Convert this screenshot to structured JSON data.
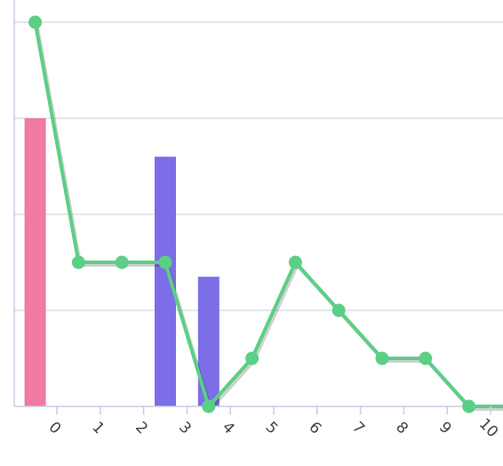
{
  "chart_data": {
    "type": "bar",
    "title": "",
    "xlabel": "",
    "ylabel": "",
    "categories": [
      "0",
      "1",
      "2",
      "3",
      "4",
      "5",
      "6",
      "7",
      "8",
      "9",
      "10"
    ],
    "x_ticks": [
      "0",
      "1",
      "2",
      "3",
      "4",
      "5",
      "6",
      "7",
      "8",
      "9",
      "10"
    ],
    "ylim": [
      0,
      8
    ],
    "grid": true,
    "legend": "none",
    "bar_series": [
      {
        "color": "#ef7aa2",
        "values": [
          6.0,
          0,
          0,
          2.4,
          0,
          0,
          0,
          0,
          0,
          0,
          0
        ]
      },
      {
        "color": "#7b6ee6",
        "values": [
          0,
          0,
          0,
          5.2,
          2.7,
          0,
          0,
          0,
          0,
          0,
          0
        ]
      }
    ],
    "line_series": {
      "color": "#5bcf86",
      "x": [
        -0.5,
        0.5,
        1.5,
        2.5,
        3.5,
        4.5,
        5.5,
        6.5,
        7.5,
        8.5,
        9.5,
        10.5
      ],
      "values": [
        8,
        3,
        3,
        3,
        0,
        1,
        3,
        2,
        1,
        1,
        0,
        0
      ]
    }
  }
}
